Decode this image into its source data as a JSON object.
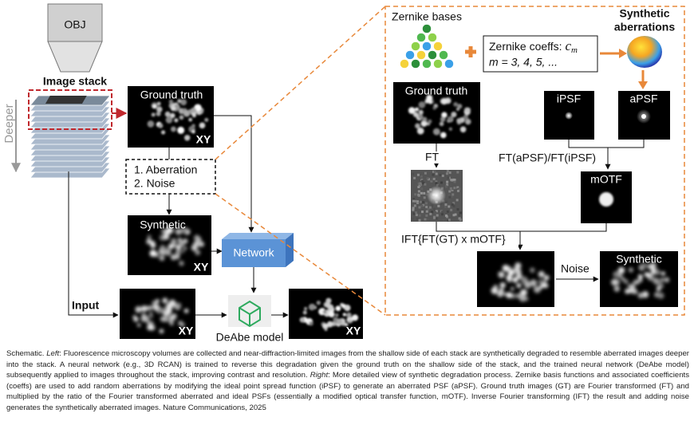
{
  "left": {
    "objective": "OBJ",
    "image_stack": "Image stack",
    "deeper": "Deeper",
    "ground_truth": "Ground truth",
    "xy": [
      "XY",
      "XY",
      "XY",
      "XY"
    ],
    "steps": [
      "1. Aberration",
      "2. Noise"
    ],
    "synthetic": "Synthetic",
    "network": "Network",
    "input": "Input",
    "deabe_model": "DeAbe model"
  },
  "right": {
    "zernike_bases": "Zernike bases",
    "coeffs_label": "Zernike coeffs:",
    "coeffs_symbol": "c",
    "coeffs_subscript": "m",
    "coeffs_range": "m = 3, 4, 5, ...",
    "synthetic_aberrations": [
      "Synthetic",
      "aberrations"
    ],
    "ground_truth": "Ground truth",
    "ipsf": "iPSF",
    "apsf": "aPSF",
    "ft": "FT",
    "ratio": "FT(aPSF)/FT(iPSF)",
    "motf": "mOTF",
    "ift": "IFT{FT(GT) x mOTF}",
    "noise": "Noise",
    "synthetic": "Synthetic"
  },
  "caption": [
    "Schematic. ",
    "Left",
    ": Fluorescence microscopy volumes are collected and near-diffraction-limited images from the shallow side of each stack are synthetically degraded to resemble aberrated images deeper into the stack. A neural network (e.g., 3D RCAN) is trained to reverse this degradation given the ground truth on the shallow side of the stack, and the trained neural network (DeAbe model) subsequently applied to images throughout the stack, improving contrast and resolution. ",
    "Right",
    ": More detailed view of synthetic degradation process. Zernike basis functions and associated coefficients (coeffs) are used to add random aberrations by modifying the ideal point spread function (iPSF) to generate an aberrated PSF (aPSF). Ground truth images (GT) are Fourier transformed (FT) and multiplied by the ratio of the Fourier transformed aberrated and ideal PSFs (essentially a modified optical transfer function, mOTF). Inverse Fourier transforming (IFT) the result and adding noise generates the synthetically aberrated images. Nature Communications, 2025"
  ]
}
